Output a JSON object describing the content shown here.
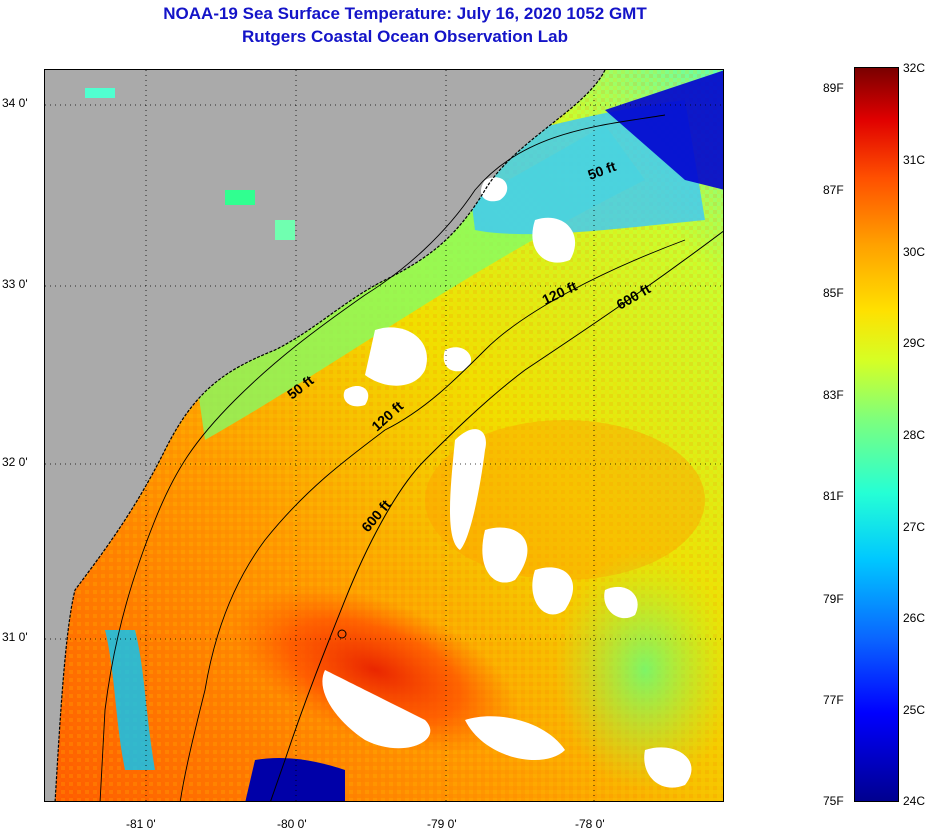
{
  "title": {
    "line1": "NOAA-19 Sea Surface Temperature:  July 16, 2020 1052 GMT",
    "line2": "Rutgers Coastal Ocean Observation Lab"
  },
  "map": {
    "latitude_labels": [
      "34 0'",
      "33 0'",
      "32 0'",
      "31 0'"
    ],
    "longitude_labels": [
      "-81 0'",
      "-80 0'",
      "-79 0'",
      "-78 0'"
    ],
    "contour_labels": [
      "50 ft",
      "120 ft",
      "600 ft",
      "50 ft",
      "120 ft",
      "600 ft"
    ],
    "colors": {
      "land": "#aaaaaa",
      "cloud": "#ffffff",
      "warm_water": "#ff6a00",
      "cool_water": "#0000ff"
    }
  },
  "colorbar": {
    "fahrenheit_labels": [
      "89F",
      "87F",
      "85F",
      "83F",
      "81F",
      "79F",
      "77F",
      "75F"
    ],
    "celsius_labels": [
      "32C",
      "31C",
      "30C",
      "29C",
      "28C",
      "27C",
      "26C",
      "25C",
      "24C"
    ]
  }
}
